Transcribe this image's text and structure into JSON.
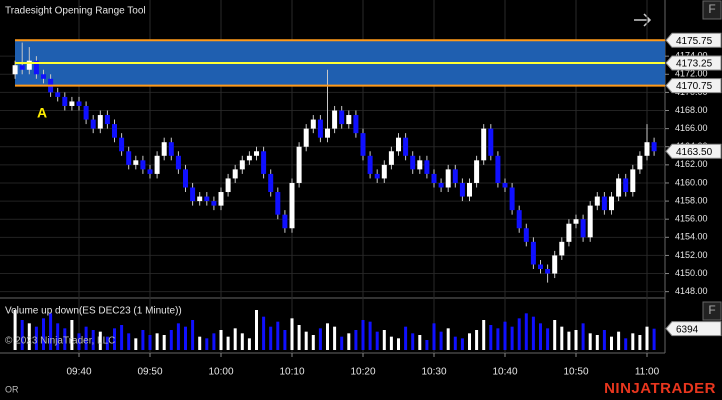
{
  "title": "Tradesight Opening Range Tool",
  "footer": {
    "label": "OR",
    "brand": "NINJATRADER",
    "copyright": "© 2023 NinjaTrader, LLC"
  },
  "chart_data": [
    {
      "type": "candlestick",
      "annotation": "A",
      "up_color": "#ffffff",
      "down_color": "#1010ff",
      "wick_color": "#c8c8c8",
      "open": [
        4172.0,
        4173.0,
        4172.5,
        4173.5,
        4172.0,
        4171.5,
        4170.0,
        4169.5,
        4168.5,
        4169.0,
        4168.5,
        4167.0,
        4166.0,
        4167.5,
        4166.5,
        4165.0,
        4163.5,
        4162.0,
        4162.5,
        4161.5,
        4161.0,
        4163.0,
        4164.5,
        4163.0,
        4161.5,
        4159.5,
        4158.0,
        4158.5,
        4158.0,
        4157.5,
        4159.0,
        4160.5,
        4161.5,
        4162.5,
        4163.0,
        4163.5,
        4161.0,
        4159.0,
        4156.5,
        4155.0,
        4160.0,
        4164.0,
        4166.0,
        4167.0,
        4165.0,
        4166.0,
        4168.0,
        4166.5,
        4167.5,
        4165.5,
        4163.0,
        4161.0,
        4160.5,
        4162.0,
        4163.5,
        4165.0,
        4163.0,
        4161.5,
        4162.5,
        4161.0,
        4160.0,
        4159.5,
        4161.5,
        4160.0,
        4158.5,
        4160.0,
        4162.5,
        4166.0,
        4163.0,
        4160.0,
        4159.5,
        4157.0,
        4155.0,
        4153.5,
        4151.0,
        4150.5,
        4150.0,
        4152.0,
        4153.5,
        4155.5,
        4156.0,
        4154.0,
        4157.5,
        4158.5,
        4157.0,
        4158.5,
        4160.5,
        4159.0,
        4161.5,
        4163.0,
        4164.5
      ],
      "high": [
        4173.5,
        4175.5,
        4175.0,
        4174.0,
        4172.5,
        4172.0,
        4170.5,
        4170.0,
        4169.5,
        4169.5,
        4169.0,
        4167.5,
        4168.0,
        4168.0,
        4167.0,
        4165.5,
        4164.0,
        4163.0,
        4163.0,
        4162.0,
        4163.5,
        4165.0,
        4165.0,
        4163.5,
        4162.0,
        4160.0,
        4159.0,
        4159.0,
        4158.5,
        4159.5,
        4161.0,
        4162.0,
        4163.0,
        4163.5,
        4164.0,
        4164.0,
        4161.5,
        4159.5,
        4157.0,
        4160.5,
        4164.5,
        4166.5,
        4167.5,
        4167.5,
        4172.5,
        4168.5,
        4168.5,
        4168.0,
        4168.0,
        4166.0,
        4163.5,
        4161.5,
        4162.5,
        4164.0,
        4165.5,
        4165.5,
        4163.5,
        4163.0,
        4163.0,
        4161.5,
        4160.5,
        4162.0,
        4162.0,
        4160.5,
        4160.5,
        4163.0,
        4166.5,
        4166.5,
        4163.5,
        4160.5,
        4160.0,
        4157.5,
        4155.5,
        4154.0,
        4151.5,
        4151.0,
        4152.5,
        4154.0,
        4156.0,
        4156.5,
        4156.5,
        4158.0,
        4159.0,
        4159.0,
        4159.0,
        4161.0,
        4161.0,
        4162.0,
        4163.5,
        4166.5,
        4165.0
      ],
      "low": [
        4171.5,
        4172.0,
        4172.0,
        4171.5,
        4171.0,
        4169.5,
        4169.0,
        4168.0,
        4168.0,
        4168.0,
        4166.5,
        4165.5,
        4165.5,
        4166.0,
        4164.5,
        4163.0,
        4161.5,
        4161.5,
        4161.0,
        4160.5,
        4160.5,
        4162.5,
        4162.5,
        4161.0,
        4159.0,
        4157.5,
        4157.5,
        4157.5,
        4157.0,
        4157.0,
        4158.5,
        4160.0,
        4161.0,
        4162.0,
        4162.5,
        4160.5,
        4158.5,
        4156.0,
        4154.5,
        4154.5,
        4159.5,
        4163.5,
        4165.5,
        4164.5,
        4164.5,
        4165.5,
        4166.0,
        4166.0,
        4165.0,
        4162.5,
        4160.5,
        4160.0,
        4160.0,
        4161.5,
        4163.0,
        4162.5,
        4161.0,
        4161.0,
        4160.5,
        4159.5,
        4159.0,
        4159.0,
        4159.5,
        4158.0,
        4158.0,
        4159.5,
        4162.0,
        4162.5,
        4159.5,
        4159.0,
        4156.5,
        4154.5,
        4153.0,
        4150.5,
        4150.0,
        4149.0,
        4149.5,
        4151.5,
        4153.0,
        4155.0,
        4153.5,
        4153.5,
        4157.0,
        4156.5,
        4156.5,
        4158.0,
        4158.5,
        4158.5,
        4161.0,
        4162.5,
        4163.0
      ],
      "close": [
        4173.0,
        4172.5,
        4173.5,
        4172.0,
        4171.5,
        4170.0,
        4169.5,
        4168.5,
        4169.0,
        4168.5,
        4167.0,
        4166.0,
        4167.5,
        4166.5,
        4165.0,
        4163.5,
        4162.0,
        4162.5,
        4161.5,
        4161.0,
        4163.0,
        4164.5,
        4163.0,
        4161.5,
        4159.5,
        4158.0,
        4158.5,
        4158.0,
        4157.5,
        4159.0,
        4160.5,
        4161.5,
        4162.5,
        4163.0,
        4163.5,
        4161.0,
        4159.0,
        4156.5,
        4155.0,
        4160.0,
        4164.0,
        4166.0,
        4167.0,
        4165.0,
        4166.0,
        4168.0,
        4166.5,
        4167.5,
        4165.5,
        4163.0,
        4161.0,
        4160.5,
        4162.0,
        4163.5,
        4165.0,
        4163.0,
        4161.5,
        4162.5,
        4161.0,
        4160.0,
        4159.5,
        4161.5,
        4160.0,
        4158.5,
        4160.0,
        4162.5,
        4166.0,
        4163.0,
        4160.0,
        4159.5,
        4157.0,
        4155.0,
        4153.5,
        4151.0,
        4150.5,
        4150.0,
        4152.0,
        4153.5,
        4155.5,
        4156.0,
        4154.0,
        4157.5,
        4158.5,
        4157.0,
        4158.5,
        4160.5,
        4159.0,
        4161.5,
        4163.0,
        4164.5,
        4163.5
      ],
      "range": {
        "high": 4175.75,
        "mid": 4173.25,
        "low": 4170.75,
        "fill": "#1f5fb0",
        "edge_color": "#ff9a1a",
        "mid_color": "#ffff33"
      },
      "last_price": {
        "value": 4163.5,
        "label": "4163.50"
      },
      "ylim": [
        4147.3,
        4180.2
      ],
      "yticks": [
        {
          "value": 4148,
          "label": "4148.00"
        },
        {
          "value": 4150,
          "label": "4150.00"
        },
        {
          "value": 4152,
          "label": "4152.00"
        },
        {
          "value": 4154,
          "label": "4154.00"
        },
        {
          "value": 4156,
          "label": "4156.00"
        },
        {
          "value": 4158,
          "label": "4158.00"
        },
        {
          "value": 4160,
          "label": "4160.00"
        },
        {
          "value": 4162,
          "label": "4162.00"
        },
        {
          "value": 4164,
          "label": "4164.00"
        },
        {
          "value": 4166,
          "label": "4166.00"
        },
        {
          "value": 4168,
          "label": "4168.00"
        },
        {
          "value": 4170,
          "label": "4170.00"
        },
        {
          "value": 4172,
          "label": "4172.00"
        },
        {
          "value": 4174,
          "label": "4174.00"
        }
      ],
      "grid": true
    },
    {
      "type": "volume",
      "title": "Volume up down(ES DEC23 (1 Minute))",
      "categories": [
        null,
        null,
        null,
        null,
        null,
        null,
        null,
        null,
        null,
        "09:40",
        null,
        null,
        null,
        null,
        null,
        null,
        null,
        null,
        null,
        "09:50",
        null,
        null,
        null,
        null,
        null,
        null,
        null,
        null,
        null,
        "10:00",
        null,
        null,
        null,
        null,
        null,
        null,
        null,
        null,
        null,
        "10:10",
        null,
        null,
        null,
        null,
        null,
        null,
        null,
        null,
        null,
        "10:20",
        null,
        null,
        null,
        null,
        null,
        null,
        null,
        null,
        null,
        "10:30",
        null,
        null,
        null,
        null,
        null,
        null,
        null,
        null,
        null,
        "10:40",
        null,
        null,
        null,
        null,
        null,
        null,
        null,
        null,
        null,
        "10:50",
        null,
        null,
        null,
        null,
        null,
        null,
        null,
        null,
        null,
        "11:00",
        null
      ],
      "values": [
        12000,
        9000,
        8000,
        7000,
        9500,
        11000,
        8000,
        6500,
        9000,
        5000,
        7000,
        6000,
        5500,
        4000,
        6500,
        7500,
        5000,
        3500,
        6000,
        4500,
        5000,
        4500,
        6000,
        8000,
        7000,
        9000,
        4000,
        3500,
        5000,
        6000,
        4000,
        6500,
        5000,
        3500,
        12000,
        10000,
        7000,
        8500,
        6000,
        9500,
        7500,
        5500,
        4500,
        6500,
        8000,
        7000,
        4000,
        5000,
        6000,
        9000,
        8500,
        5500,
        6000,
        4000,
        3500,
        7000,
        5000,
        4500,
        3000,
        8000,
        5500,
        6500,
        4000,
        3500,
        5000,
        6000,
        9000,
        7500,
        6500,
        8500,
        7000,
        9500,
        11000,
        10000,
        8000,
        6500,
        9000,
        7000,
        5500,
        6000,
        8000,
        5000,
        4500,
        6000,
        4000,
        5500,
        3500,
        5000,
        4500,
        7000,
        6394
      ],
      "last_value": 6394,
      "ylim": [
        0,
        15000
      ]
    }
  ]
}
